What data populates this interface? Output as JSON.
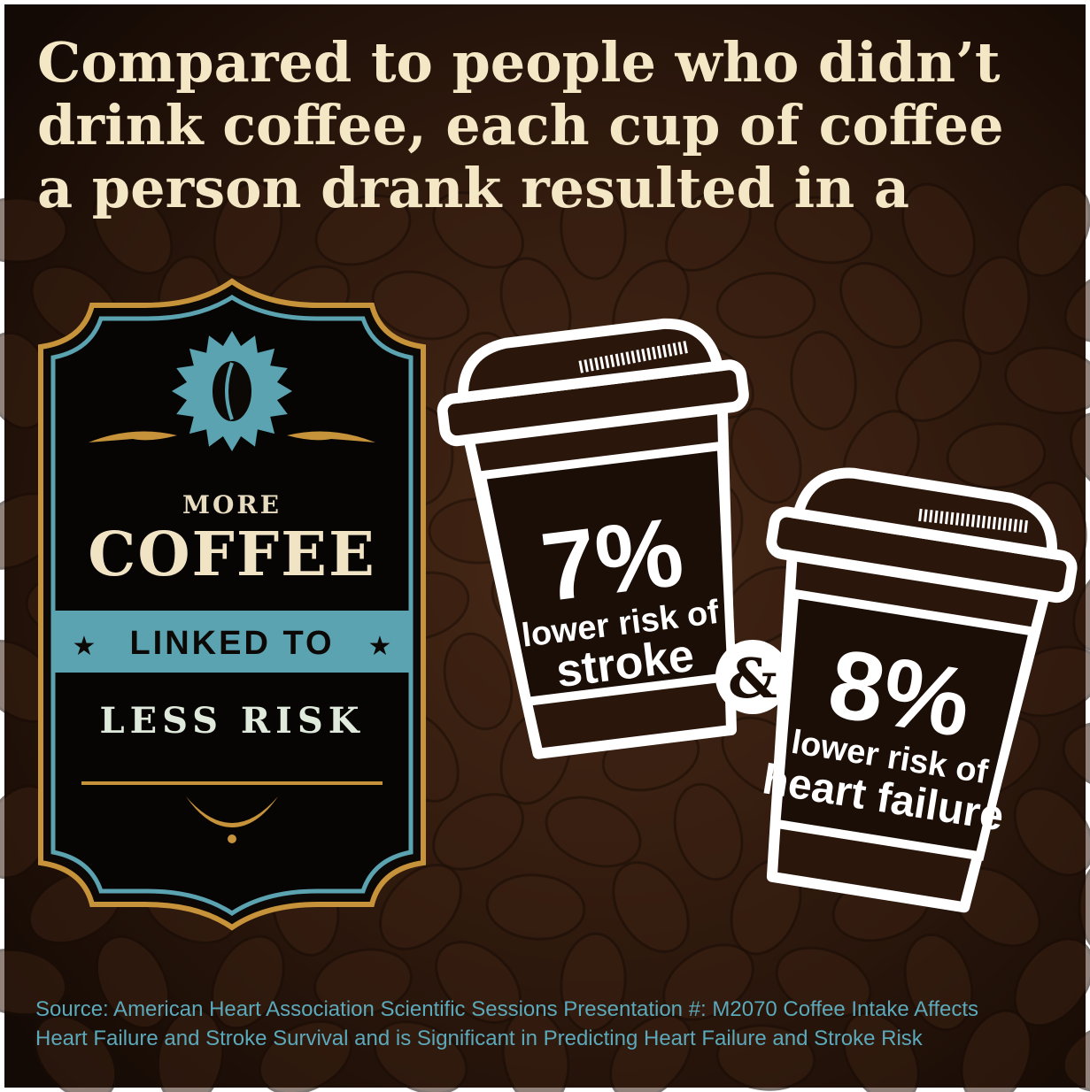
{
  "headline": {
    "lines": [
      "Compared to people who didn’t",
      "drink coffee, each cup of coffee",
      "a person drank resulted in a"
    ]
  },
  "badge": {
    "top": "MORE",
    "main": "COFFEE",
    "band": "LINKED TO",
    "bottom": "LESS RISK"
  },
  "cups": [
    {
      "figure": "7%",
      "lines": [
        "lower risk of",
        "stroke"
      ]
    },
    {
      "figure": "8%",
      "lines": [
        "lower risk of",
        "heart failure"
      ]
    }
  ],
  "connector": "&",
  "source": {
    "lines": [
      "Source: American Heart Association Scientific Sessions Presentation #: M2070 Coffee Intake Affects",
      "Heart Failure and Stroke Survival and is Significant in Predicting Heart Failure and Stroke Risk"
    ]
  }
}
